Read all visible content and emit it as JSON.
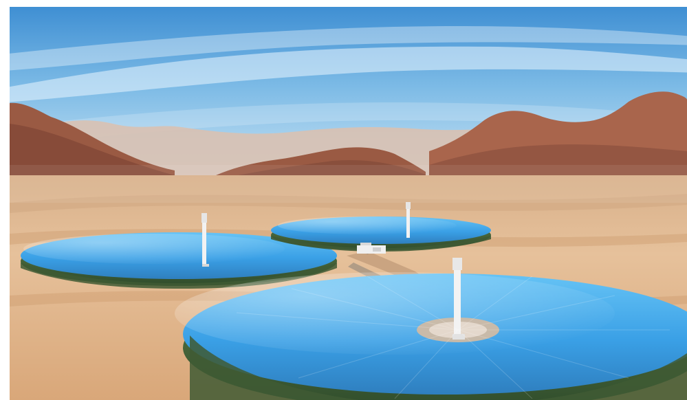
{
  "image": {
    "kind": "photograph",
    "colors": {
      "sky_top": "#3f8fd3",
      "sky_bottom": "#cfe6f4",
      "sand": "#e2b98f",
      "sand_dark": "#c99667",
      "rock": "#9a5a43",
      "rock_far": "#d2b3a0",
      "mirror_blue": "#3fa6e8",
      "mirror_green": "#4f6b3f",
      "tower": "#f2f2f2"
    },
    "towers": 3,
    "heliostat_fields": 3
  }
}
